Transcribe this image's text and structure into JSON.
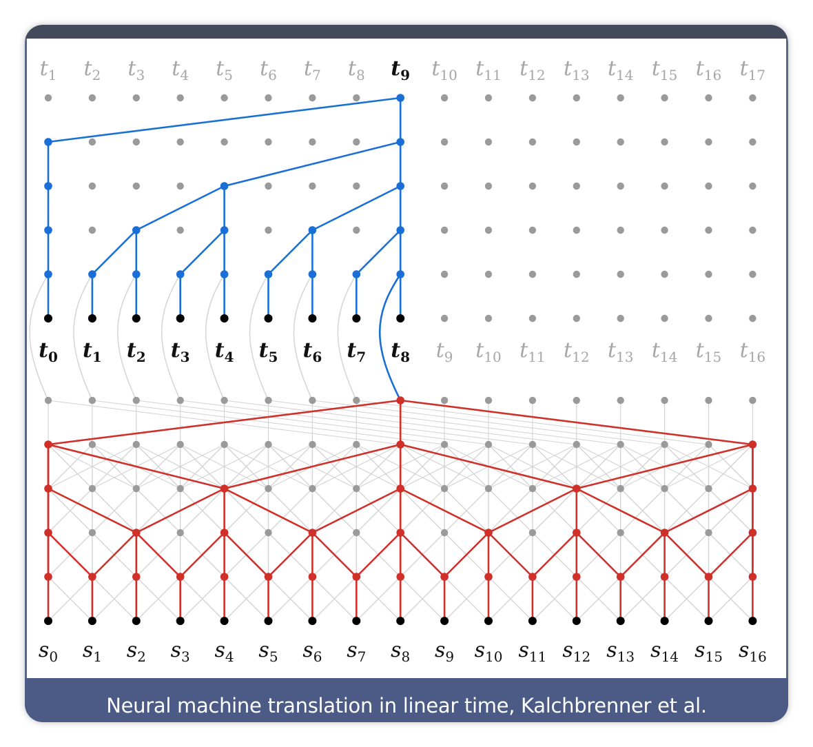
{
  "caption": "Neural machine translation in linear time, Kalchbrenner et al.",
  "decoder_output_labels": [
    {
      "base": "t",
      "sub": "1"
    },
    {
      "base": "t",
      "sub": "2"
    },
    {
      "base": "t",
      "sub": "3"
    },
    {
      "base": "t",
      "sub": "4"
    },
    {
      "base": "t",
      "sub": "5"
    },
    {
      "base": "t",
      "sub": "6"
    },
    {
      "base": "t",
      "sub": "7"
    },
    {
      "base": "t",
      "sub": "8"
    },
    {
      "base": "t",
      "sub": "9",
      "highlight": true
    },
    {
      "base": "t",
      "sub": "10"
    },
    {
      "base": "t",
      "sub": "11"
    },
    {
      "base": "t",
      "sub": "12"
    },
    {
      "base": "t",
      "sub": "13"
    },
    {
      "base": "t",
      "sub": "14"
    },
    {
      "base": "t",
      "sub": "15"
    },
    {
      "base": "t",
      "sub": "16"
    },
    {
      "base": "t",
      "sub": "17"
    }
  ],
  "decoder_input_labels": [
    {
      "base": "t",
      "sub": "0",
      "active": true
    },
    {
      "base": "t",
      "sub": "1",
      "active": true
    },
    {
      "base": "t",
      "sub": "2",
      "active": true
    },
    {
      "base": "t",
      "sub": "3",
      "active": true
    },
    {
      "base": "t",
      "sub": "4",
      "active": true
    },
    {
      "base": "t",
      "sub": "5",
      "active": true
    },
    {
      "base": "t",
      "sub": "6",
      "active": true
    },
    {
      "base": "t",
      "sub": "7",
      "active": true
    },
    {
      "base": "t",
      "sub": "8",
      "active": true
    },
    {
      "base": "t",
      "sub": "9"
    },
    {
      "base": "t",
      "sub": "10"
    },
    {
      "base": "t",
      "sub": "11"
    },
    {
      "base": "t",
      "sub": "12"
    },
    {
      "base": "t",
      "sub": "13"
    },
    {
      "base": "t",
      "sub": "14"
    },
    {
      "base": "t",
      "sub": "15"
    },
    {
      "base": "t",
      "sub": "16"
    }
  ],
  "encoder_source_labels": [
    {
      "base": "s",
      "sub": "0"
    },
    {
      "base": "s",
      "sub": "1"
    },
    {
      "base": "s",
      "sub": "2"
    },
    {
      "base": "s",
      "sub": "3"
    },
    {
      "base": "s",
      "sub": "4"
    },
    {
      "base": "s",
      "sub": "5"
    },
    {
      "base": "s",
      "sub": "6"
    },
    {
      "base": "s",
      "sub": "7"
    },
    {
      "base": "s",
      "sub": "8"
    },
    {
      "base": "s",
      "sub": "9"
    },
    {
      "base": "s",
      "sub": "10"
    },
    {
      "base": "s",
      "sub": "11"
    },
    {
      "base": "s",
      "sub": "12"
    },
    {
      "base": "s",
      "sub": "13"
    },
    {
      "base": "s",
      "sub": "14"
    },
    {
      "base": "s",
      "sub": "15"
    },
    {
      "base": "s",
      "sub": "16"
    }
  ],
  "colors": {
    "decoder_path": "#1a6fd6",
    "encoder_path": "#d0302a",
    "inactive_node": "#9a9a9a",
    "active_node": "#000000",
    "faint_edge": "#d4d4d4",
    "inactive_label": "#a6a6a6"
  }
}
